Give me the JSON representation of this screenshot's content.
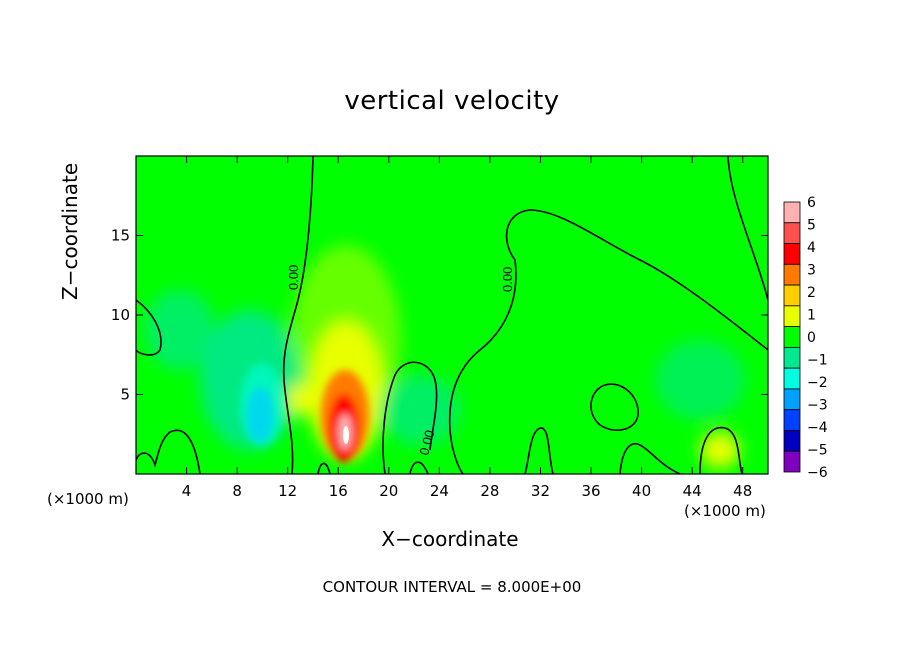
{
  "chart_data": {
    "type": "heatmap",
    "title": "vertical velocity",
    "xlabel": "X−coordinate",
    "ylabel": "Z−coordinate",
    "x_unit_label": "(×1000 m)",
    "x_range": [
      0,
      50
    ],
    "y_range": [
      0,
      20
    ],
    "x_ticks": [
      4,
      8,
      12,
      16,
      20,
      24,
      28,
      32,
      36,
      40,
      44,
      48
    ],
    "y_ticks": [
      5,
      10,
      15
    ],
    "colorbar": {
      "levels": [
        6,
        5,
        4,
        3,
        2,
        1,
        0,
        -1,
        -2,
        -3,
        -4,
        -5,
        -6
      ],
      "labels": [
        "6",
        "5",
        "4",
        "3",
        "2",
        "1",
        "0",
        "−1",
        "−2",
        "−3",
        "−4",
        "−5",
        "−6"
      ],
      "colors": [
        "#ffb0b0",
        "#ff5050",
        "#ff0000",
        "#ff7a00",
        "#ffd000",
        "#e8ff00",
        "#00ff00",
        "#00e890",
        "#00ffe0",
        "#00a0ff",
        "#0040ff",
        "#0000c0",
        "#8000c0"
      ]
    },
    "features": [
      {
        "x": 16.5,
        "y": 2.5,
        "value": 6
      },
      {
        "x": 16.5,
        "y": 5.5,
        "value": 3
      },
      {
        "x": 16,
        "y": 10,
        "value": 1
      },
      {
        "x": 10,
        "y": 3.5,
        "value": -3
      },
      {
        "x": 8,
        "y": 6,
        "value": -1
      },
      {
        "x": 4,
        "y": 9,
        "value": -1
      },
      {
        "x": 23,
        "y": 4,
        "value": -1
      },
      {
        "x": 46,
        "y": 1,
        "value": 1
      },
      {
        "x": 42,
        "y": 5,
        "value": -1
      }
    ],
    "contour_label": "0.00",
    "contour_interval_text": "CONTOUR INTERVAL =  8.000E+00"
  }
}
